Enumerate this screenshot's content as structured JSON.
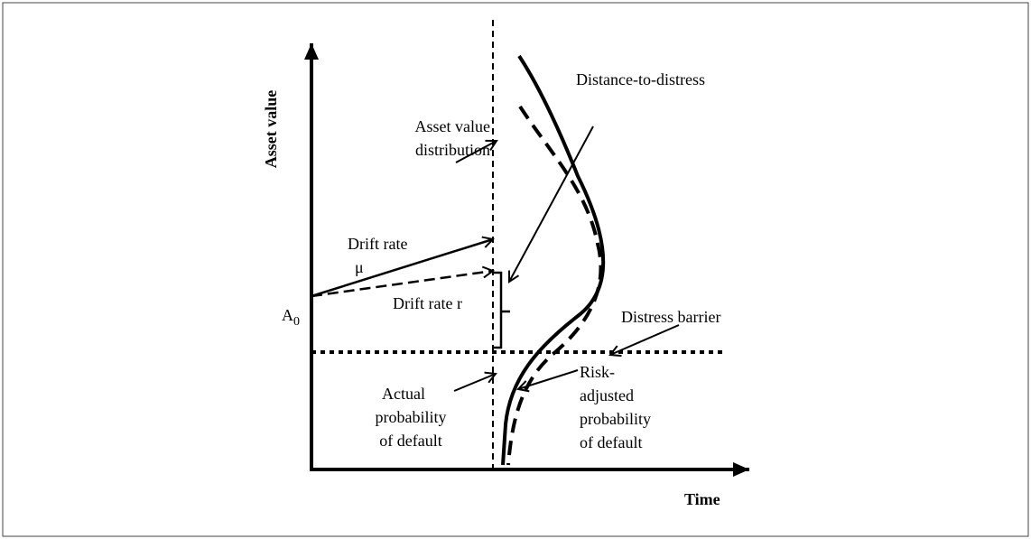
{
  "axes": {
    "y_label": "Asset value",
    "x_label": "Time"
  },
  "labels": {
    "distance_to_distress": "Distance-to-distress",
    "asset_value_distribution": [
      "Asset value",
      "distribution"
    ],
    "drift_rate_mu": [
      "Drift rate",
      "μ"
    ],
    "drift_rate_r": "Drift rate r",
    "start_value": {
      "symbol": "A",
      "subscript": "0"
    },
    "distress_barrier": "Distress barrier",
    "actual_pd": [
      "Actual",
      "probability",
      "of default"
    ],
    "risk_adjusted_pd": [
      "Risk-",
      "adjusted",
      "probability",
      "of default"
    ]
  }
}
